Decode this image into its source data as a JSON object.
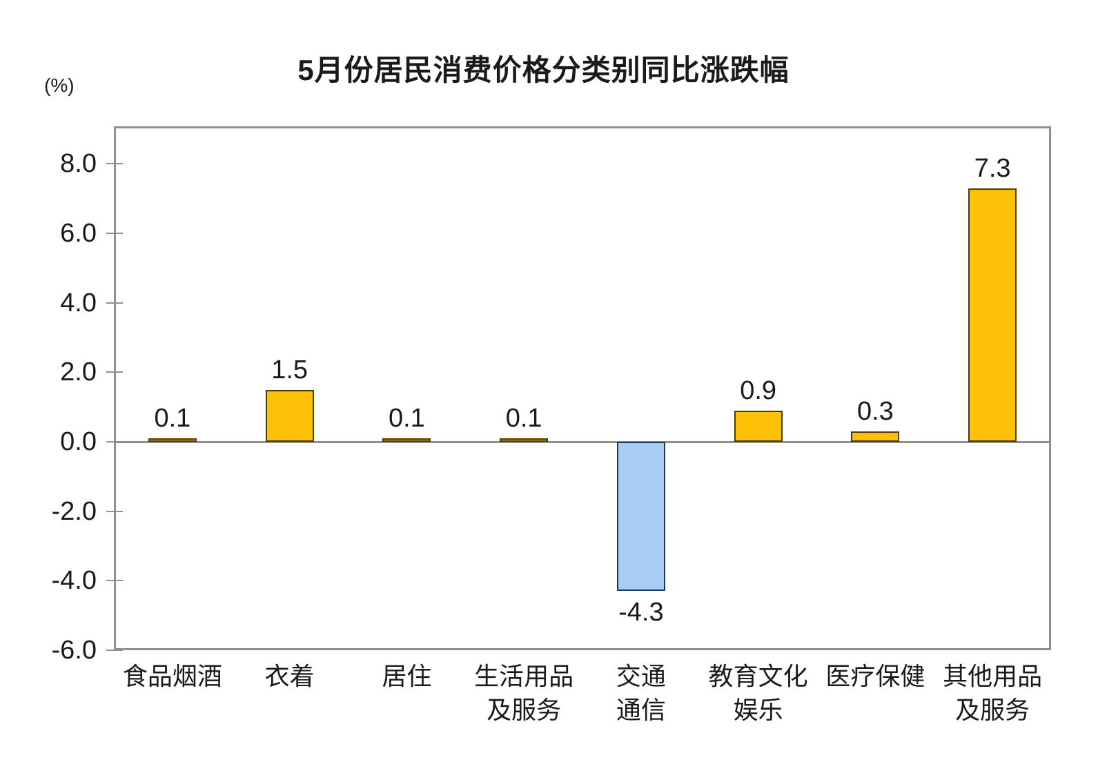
{
  "chart": {
    "title": "5月份居民消费价格分类别同比涨跌幅",
    "unit_label": "(%)"
  },
  "chart_data": {
    "type": "bar",
    "title": "5月份居民消费价格分类别同比涨跌幅",
    "unit_label": "(%)",
    "categories": [
      "食品烟酒",
      "衣着",
      "居住",
      "生活用品\n及服务",
      "交通\n通信",
      "教育文化\n娱乐",
      "医疗保健",
      "其他用品\n及服务"
    ],
    "values": [
      0.1,
      1.5,
      0.1,
      0.1,
      -4.3,
      0.9,
      0.3,
      7.3
    ],
    "data_labels": [
      "0.1",
      "1.5",
      "0.1",
      "0.1",
      "-4.3",
      "0.9",
      "0.3",
      "7.3"
    ],
    "xlabel": "",
    "ylabel": "(%)",
    "ylim": [
      -6.0,
      9.08
    ],
    "yticks": [
      8.0,
      6.0,
      4.0,
      2.0,
      0.0,
      -2.0,
      -4.0,
      -6.0
    ],
    "ytick_labels": [
      "8.0",
      "6.0",
      "4.0",
      "2.0",
      "0.0",
      "-2.0",
      "-4.0",
      "-6.0"
    ],
    "grid": false,
    "legend": "none",
    "colors": {
      "positive_fill": "#FFC008",
      "positive_border": "#4d3a00",
      "negative_fill": "#A9CCF2",
      "negative_border": "#1F3864",
      "axis_line": "#8f8f8f",
      "text": "#1a1a1a"
    }
  }
}
